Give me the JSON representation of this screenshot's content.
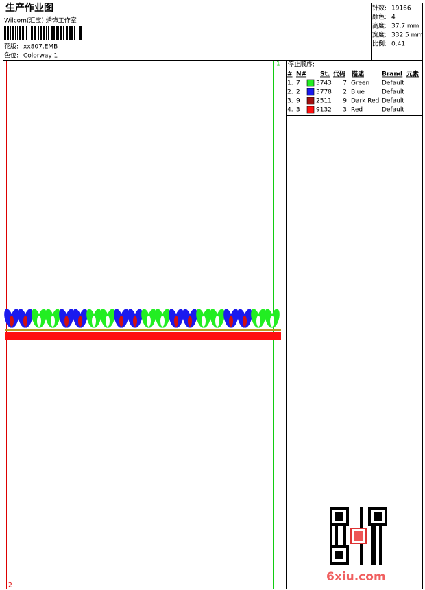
{
  "header": {
    "title": "生产作业图",
    "studio": "Wilcom(汇宝) 绣饰工作室",
    "design_label": "花版:",
    "design": "xx807.EMB",
    "colorway_label": "色位:",
    "colorway": "Colorway 1"
  },
  "info": [
    {
      "label": "针数:",
      "value": "19166"
    },
    {
      "label": "颜色:",
      "value": "4"
    },
    {
      "label": "高度:",
      "value": "37.7 mm"
    },
    {
      "label": "宽度:",
      "value": "332.5 mm"
    },
    {
      "label": "比例:",
      "value": "0.41"
    }
  ],
  "stop_sequence": {
    "title": "停止顺序:",
    "columns": [
      "#",
      "N#",
      "St.",
      "代码",
      "描述",
      "Brand",
      "元素"
    ],
    "rows": [
      {
        "num": "1.",
        "needle": "7",
        "color": "#22ee22",
        "stitches": "3743",
        "code": "7",
        "desc": "Green",
        "brand": "Default"
      },
      {
        "num": "2.",
        "needle": "2",
        "color": "#1a1aee",
        "stitches": "3778",
        "code": "2",
        "desc": "Blue",
        "brand": "Default"
      },
      {
        "num": "3.",
        "needle": "9",
        "color": "#a01010",
        "stitches": "2511",
        "code": "9",
        "desc": "Dark Red",
        "brand": "Default"
      },
      {
        "num": "4.",
        "needle": "3",
        "color": "#ff1010",
        "stitches": "9132",
        "code": "3",
        "desc": "Red",
        "brand": "Default"
      }
    ]
  },
  "markers": {
    "top": "1",
    "bottom": "2"
  },
  "watermark": "6xiu.com"
}
